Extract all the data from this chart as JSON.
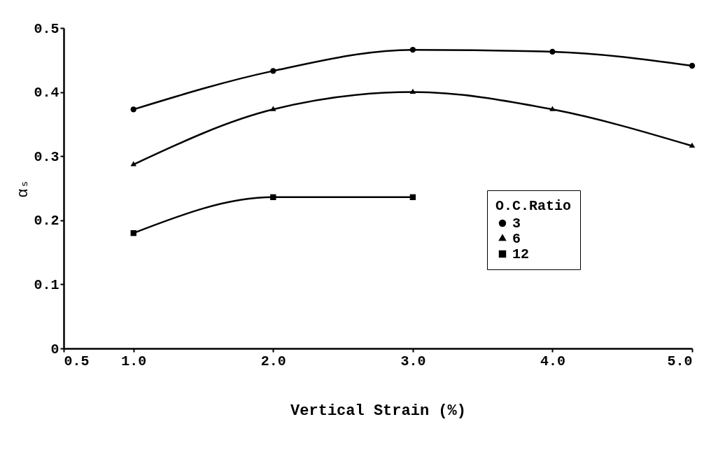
{
  "chart_data": {
    "type": "line",
    "xlabel": "Vertical Strain (%)",
    "ylabel": "αₛ",
    "legend_title": "O.C.Ratio",
    "x": [
      1.0,
      2.0,
      3.0,
      4.0,
      5.0
    ],
    "series": [
      {
        "name": "3",
        "color": "#000000",
        "marker": "circle",
        "values": [
          0.373,
          0.433,
          0.466,
          0.463,
          0.441
        ]
      },
      {
        "name": "6",
        "color": "#000000",
        "marker": "triangle",
        "values": [
          0.287,
          0.373,
          0.4,
          0.373,
          0.316
        ]
      },
      {
        "name": "12",
        "color": "#000000",
        "marker": "square",
        "values": [
          0.18,
          0.236,
          0.236,
          null,
          null
        ]
      }
    ],
    "xlim": [
      0.5,
      5.0
    ],
    "xticks": [
      0.5,
      {
        "value": 1,
        "label": "1.0"
      },
      {
        "value": 2,
        "label": "2.0"
      },
      {
        "value": 3,
        "label": "3.0"
      },
      {
        "value": 4,
        "label": "4.0"
      },
      {
        "value": 5,
        "label": "5.0"
      }
    ],
    "ylim": [
      0,
      0.5
    ],
    "yticks": [
      0,
      0.1,
      0.2,
      0.3,
      0.4,
      0.5
    ],
    "legend": "right",
    "line_style": "solid"
  }
}
